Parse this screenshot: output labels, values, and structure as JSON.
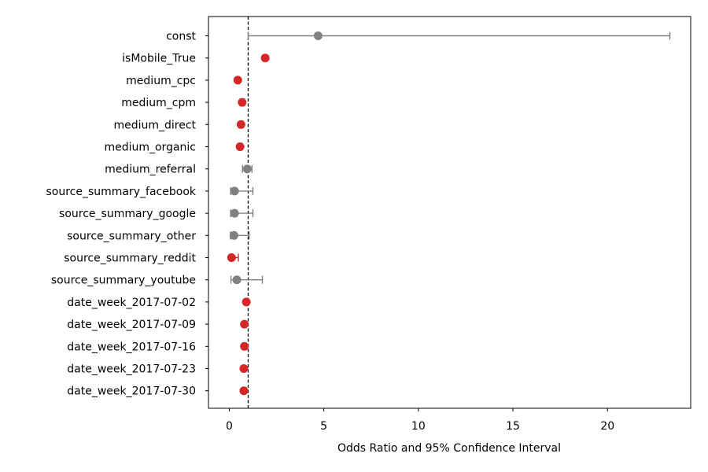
{
  "chart_data": {
    "type": "scatter",
    "title": "",
    "xlabel": "Odds Ratio and 95% Confidence Interval",
    "ylabel": "",
    "xlim": [
      -1.1,
      24.4
    ],
    "xticks": [
      0,
      5,
      10,
      15,
      20
    ],
    "xtick_labels": [
      "0",
      "5",
      "10",
      "15",
      "20"
    ],
    "reference_line": 1,
    "grid": false,
    "colors": {
      "significant": "#d62728",
      "non_significant": "#808080",
      "reference": "#000000"
    },
    "categories": [
      "const",
      "isMobile_True",
      "medium_cpc",
      "medium_cpm",
      "medium_direct",
      "medium_organic",
      "medium_referral",
      "source_summary_facebook",
      "source_summary_google",
      "source_summary_other",
      "source_summary_reddit",
      "source_summary_youtube",
      "date_week_2017-07-02",
      "date_week_2017-07-09",
      "date_week_2017-07-16",
      "date_week_2017-07-23",
      "date_week_2017-07-30"
    ],
    "points": [
      {
        "label": "const",
        "or": 4.7,
        "low": 1.0,
        "high": 23.3,
        "significant": false
      },
      {
        "label": "isMobile_True",
        "or": 1.9,
        "low": 1.82,
        "high": 1.97,
        "significant": true
      },
      {
        "label": "medium_cpc",
        "or": 0.45,
        "low": 0.38,
        "high": 0.53,
        "significant": true
      },
      {
        "label": "medium_cpm",
        "or": 0.68,
        "low": 0.58,
        "high": 0.8,
        "significant": true
      },
      {
        "label": "medium_direct",
        "or": 0.62,
        "low": 0.55,
        "high": 0.7,
        "significant": true
      },
      {
        "label": "medium_organic",
        "or": 0.57,
        "low": 0.48,
        "high": 0.68,
        "significant": true
      },
      {
        "label": "medium_referral",
        "or": 0.95,
        "low": 0.7,
        "high": 1.2,
        "significant": false
      },
      {
        "label": "source_summary_facebook",
        "or": 0.28,
        "low": 0.07,
        "high": 1.25,
        "significant": false
      },
      {
        "label": "source_summary_google",
        "or": 0.28,
        "low": 0.07,
        "high": 1.25,
        "significant": false
      },
      {
        "label": "source_summary_other",
        "or": 0.25,
        "low": 0.06,
        "high": 1.05,
        "significant": false
      },
      {
        "label": "source_summary_reddit",
        "or": 0.12,
        "low": 0.03,
        "high": 0.48,
        "significant": true
      },
      {
        "label": "source_summary_youtube",
        "or": 0.4,
        "low": 0.09,
        "high": 1.75,
        "significant": false
      },
      {
        "label": "date_week_2017-07-02",
        "or": 0.9,
        "low": 0.82,
        "high": 0.98,
        "significant": true
      },
      {
        "label": "date_week_2017-07-09",
        "or": 0.8,
        "low": 0.72,
        "high": 0.88,
        "significant": true
      },
      {
        "label": "date_week_2017-07-16",
        "or": 0.8,
        "low": 0.72,
        "high": 0.88,
        "significant": true
      },
      {
        "label": "date_week_2017-07-23",
        "or": 0.77,
        "low": 0.7,
        "high": 0.85,
        "significant": true
      },
      {
        "label": "date_week_2017-07-30",
        "or": 0.77,
        "low": 0.7,
        "high": 0.85,
        "significant": true
      }
    ]
  }
}
